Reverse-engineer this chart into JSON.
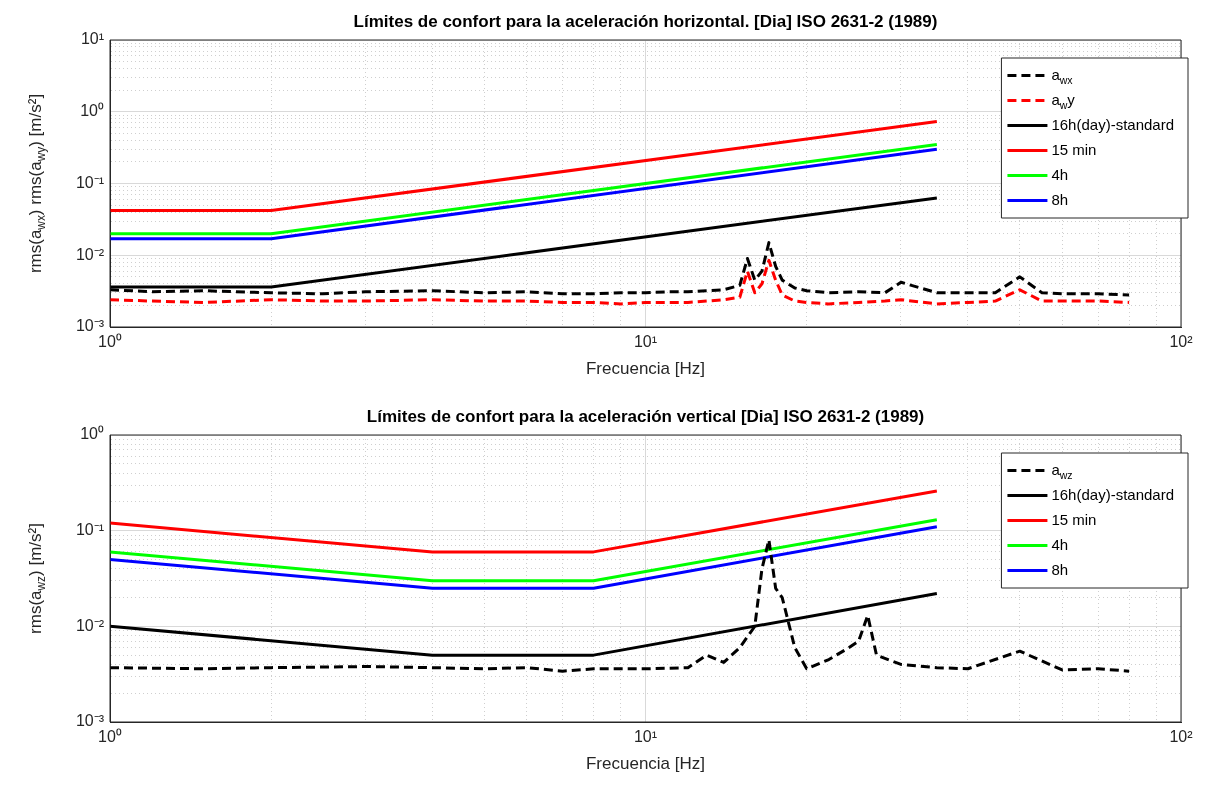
{
  "chart_data": [
    {
      "type": "line",
      "title": "Límites de confort para la aceleración horizontal. [Dia] ISO 2631-2 (1989)",
      "xlabel": "Frecuencia [Hz]",
      "ylabel": "rms(a$_{wx}$) rms(a$_{wy}$) [m/s²]",
      "log": "xy",
      "grid": true,
      "legend": "top right",
      "marker": "none",
      "xlim": [
        1,
        100
      ],
      "ylim": [
        0.001,
        10
      ],
      "xticks": [
        {
          "value": 1,
          "label": "10⁰"
        },
        {
          "value": 2,
          "label": null
        },
        {
          "value": 3,
          "label": null
        },
        {
          "value": 4,
          "label": null
        },
        {
          "value": 5,
          "label": null
        },
        {
          "value": 6,
          "label": null
        },
        {
          "value": 7,
          "label": null
        },
        {
          "value": 8,
          "label": null
        },
        {
          "value": 9,
          "label": null
        },
        {
          "value": 10,
          "label": "10¹"
        },
        {
          "value": 20,
          "label": null
        },
        {
          "value": 30,
          "label": null
        },
        {
          "value": 40,
          "label": null
        },
        {
          "value": 50,
          "label": null
        },
        {
          "value": 60,
          "label": null
        },
        {
          "value": 70,
          "label": null
        },
        {
          "value": 80,
          "label": null
        },
        {
          "value": 90,
          "label": null
        },
        {
          "value": 100,
          "label": "10²"
        }
      ],
      "yticks": [
        {
          "value": 0.001,
          "label": "10⁻³"
        },
        {
          "value": 0.002,
          "label": null
        },
        {
          "value": 0.003,
          "label": null
        },
        {
          "value": 0.004,
          "label": null
        },
        {
          "value": 0.005,
          "label": null
        },
        {
          "value": 0.006,
          "label": null
        },
        {
          "value": 0.007,
          "label": null
        },
        {
          "value": 0.008,
          "label": null
        },
        {
          "value": 0.009,
          "label": null
        },
        {
          "value": 0.01,
          "label": "10⁻²"
        },
        {
          "value": 0.02,
          "label": null
        },
        {
          "value": 0.03,
          "label": null
        },
        {
          "value": 0.04,
          "label": null
        },
        {
          "value": 0.05,
          "label": null
        },
        {
          "value": 0.06,
          "label": null
        },
        {
          "value": 0.07,
          "label": null
        },
        {
          "value": 0.08,
          "label": null
        },
        {
          "value": 0.09,
          "label": null
        },
        {
          "value": 0.1,
          "label": "10⁻¹"
        },
        {
          "value": 0.2,
          "label": null
        },
        {
          "value": 0.3,
          "label": null
        },
        {
          "value": 0.4,
          "label": null
        },
        {
          "value": 0.5,
          "label": null
        },
        {
          "value": 0.6,
          "label": null
        },
        {
          "value": 0.7,
          "label": null
        },
        {
          "value": 0.8,
          "label": null
        },
        {
          "value": 0.9,
          "label": null
        },
        {
          "value": 1,
          "label": "10⁰"
        },
        {
          "value": 2,
          "label": null
        },
        {
          "value": 3,
          "label": null
        },
        {
          "value": 4,
          "label": null
        },
        {
          "value": 5,
          "label": null
        },
        {
          "value": 6,
          "label": null
        },
        {
          "value": 7,
          "label": null
        },
        {
          "value": 8,
          "label": null
        },
        {
          "value": 9,
          "label": null
        },
        {
          "value": 10,
          "label": "10¹"
        }
      ],
      "series": [
        {
          "name": "a$_{wx}$",
          "color": "#000000",
          "line_style": "dashed",
          "x": [
            1,
            1.2,
            1.5,
            2,
            2.5,
            3,
            4,
            5,
            6,
            7,
            8,
            9,
            10,
            11,
            12,
            13,
            14,
            15,
            15.5,
            16,
            16.5,
            17,
            17.5,
            18,
            19,
            20,
            22,
            25,
            28,
            30,
            35,
            40,
            45,
            50,
            55,
            60,
            70,
            80
          ],
          "values": [
            0.0033,
            0.0031,
            0.0032,
            0.003,
            0.0029,
            0.0031,
            0.0032,
            0.003,
            0.0031,
            0.0029,
            0.0029,
            0.003,
            0.003,
            0.0031,
            0.0031,
            0.0032,
            0.0033,
            0.0038,
            0.009,
            0.0045,
            0.006,
            0.015,
            0.007,
            0.0045,
            0.0035,
            0.0032,
            0.003,
            0.0031,
            0.003,
            0.0042,
            0.003,
            0.003,
            0.003,
            0.005,
            0.003,
            0.0029,
            0.0029,
            0.0028
          ]
        },
        {
          "name": "a$_{w}$y",
          "color": "#ff0000",
          "line_style": "dashed",
          "x": [
            1,
            1.2,
            1.5,
            2,
            2.5,
            3,
            4,
            5,
            6,
            7,
            8,
            9,
            10,
            11,
            12,
            13,
            14,
            15,
            15.5,
            16,
            16.5,
            17,
            17.5,
            18,
            19,
            20,
            22,
            25,
            28,
            30,
            35,
            40,
            45,
            50,
            55,
            60,
            70,
            80
          ],
          "values": [
            0.0024,
            0.0023,
            0.0022,
            0.0024,
            0.0023,
            0.0023,
            0.0024,
            0.0023,
            0.0023,
            0.0022,
            0.0022,
            0.0021,
            0.0022,
            0.0022,
            0.0022,
            0.0023,
            0.0024,
            0.0026,
            0.006,
            0.003,
            0.004,
            0.0085,
            0.0045,
            0.0028,
            0.0023,
            0.0022,
            0.0021,
            0.0022,
            0.0023,
            0.0024,
            0.0021,
            0.0022,
            0.0023,
            0.0033,
            0.0023,
            0.0023,
            0.0023,
            0.0022
          ]
        },
        {
          "name": "16h(day)-standard",
          "color": "#000000",
          "line_style": "solid",
          "x": [
            1,
            2,
            35
          ],
          "values": [
            0.0036,
            0.0036,
            0.063
          ]
        },
        {
          "name": "15 min",
          "color": "#ff0000",
          "line_style": "solid",
          "x": [
            1,
            2,
            35
          ],
          "values": [
            0.042,
            0.042,
            0.73
          ]
        },
        {
          "name": "4h",
          "color": "#00ff00",
          "line_style": "solid",
          "x": [
            1,
            2,
            35
          ],
          "values": [
            0.02,
            0.02,
            0.35
          ]
        },
        {
          "name": "8h",
          "color": "#0000ff",
          "line_style": "solid",
          "x": [
            1,
            2,
            35
          ],
          "values": [
            0.017,
            0.017,
            0.3
          ]
        }
      ]
    },
    {
      "type": "line",
      "title": "Límites de confort para la aceleración vertical [Dia] ISO 2631-2 (1989)",
      "xlabel": "Frecuencia [Hz]",
      "ylabel": "rms(a$_{wz}$) [m/s²]",
      "log": "xy",
      "grid": true,
      "legend": "top right",
      "marker": "none",
      "xlim": [
        1,
        100
      ],
      "ylim": [
        0.001,
        1
      ],
      "xticks": [
        {
          "value": 1,
          "label": "10⁰"
        },
        {
          "value": 2,
          "label": null
        },
        {
          "value": 3,
          "label": null
        },
        {
          "value": 4,
          "label": null
        },
        {
          "value": 5,
          "label": null
        },
        {
          "value": 6,
          "label": null
        },
        {
          "value": 7,
          "label": null
        },
        {
          "value": 8,
          "label": null
        },
        {
          "value": 9,
          "label": null
        },
        {
          "value": 10,
          "label": "10¹"
        },
        {
          "value": 20,
          "label": null
        },
        {
          "value": 30,
          "label": null
        },
        {
          "value": 40,
          "label": null
        },
        {
          "value": 50,
          "label": null
        },
        {
          "value": 60,
          "label": null
        },
        {
          "value": 70,
          "label": null
        },
        {
          "value": 80,
          "label": null
        },
        {
          "value": 90,
          "label": null
        },
        {
          "value": 100,
          "label": "10²"
        }
      ],
      "yticks": [
        {
          "value": 0.001,
          "label": "10⁻³"
        },
        {
          "value": 0.002,
          "label": null
        },
        {
          "value": 0.003,
          "label": null
        },
        {
          "value": 0.004,
          "label": null
        },
        {
          "value": 0.005,
          "label": null
        },
        {
          "value": 0.006,
          "label": null
        },
        {
          "value": 0.007,
          "label": null
        },
        {
          "value": 0.008,
          "label": null
        },
        {
          "value": 0.009,
          "label": null
        },
        {
          "value": 0.01,
          "label": "10⁻²"
        },
        {
          "value": 0.02,
          "label": null
        },
        {
          "value": 0.03,
          "label": null
        },
        {
          "value": 0.04,
          "label": null
        },
        {
          "value": 0.05,
          "label": null
        },
        {
          "value": 0.06,
          "label": null
        },
        {
          "value": 0.07,
          "label": null
        },
        {
          "value": 0.08,
          "label": null
        },
        {
          "value": 0.09,
          "label": null
        },
        {
          "value": 0.1,
          "label": "10⁻¹"
        },
        {
          "value": 0.2,
          "label": null
        },
        {
          "value": 0.3,
          "label": null
        },
        {
          "value": 0.4,
          "label": null
        },
        {
          "value": 0.5,
          "label": null
        },
        {
          "value": 0.6,
          "label": null
        },
        {
          "value": 0.7,
          "label": null
        },
        {
          "value": 0.8,
          "label": null
        },
        {
          "value": 0.9,
          "label": null
        },
        {
          "value": 1,
          "label": "10⁰"
        }
      ],
      "series": [
        {
          "name": "a$_{wz}$",
          "color": "#000000",
          "line_style": "dashed",
          "x": [
            1,
            1.5,
            2,
            3,
            4,
            5,
            6,
            7,
            8,
            10,
            12,
            13,
            14,
            15,
            16,
            16.5,
            17,
            17.5,
            18,
            19,
            20,
            22,
            24,
            25,
            26,
            27,
            30,
            35,
            40,
            50,
            60,
            70,
            80
          ],
          "values": [
            0.0037,
            0.0036,
            0.0037,
            0.0038,
            0.0037,
            0.0036,
            0.0037,
            0.0034,
            0.0036,
            0.0036,
            0.0037,
            0.005,
            0.0042,
            0.006,
            0.01,
            0.04,
            0.08,
            0.025,
            0.02,
            0.006,
            0.0036,
            0.0045,
            0.006,
            0.007,
            0.013,
            0.005,
            0.004,
            0.0037,
            0.0036,
            0.0055,
            0.0035,
            0.0036,
            0.0034
          ]
        },
        {
          "name": "16h(day)-standard",
          "color": "#000000",
          "line_style": "solid",
          "x": [
            1,
            4,
            8,
            35
          ],
          "values": [
            0.01,
            0.005,
            0.005,
            0.022
          ]
        },
        {
          "name": "15 min",
          "color": "#ff0000",
          "line_style": "solid",
          "x": [
            1,
            4,
            8,
            35
          ],
          "values": [
            0.12,
            0.06,
            0.06,
            0.26
          ]
        },
        {
          "name": "4h",
          "color": "#00ff00",
          "line_style": "solid",
          "x": [
            1,
            4,
            8,
            35
          ],
          "values": [
            0.06,
            0.03,
            0.03,
            0.13
          ]
        },
        {
          "name": "8h",
          "color": "#0000ff",
          "line_style": "solid",
          "x": [
            1,
            4,
            8,
            35
          ],
          "values": [
            0.05,
            0.025,
            0.025,
            0.11
          ]
        }
      ]
    }
  ]
}
